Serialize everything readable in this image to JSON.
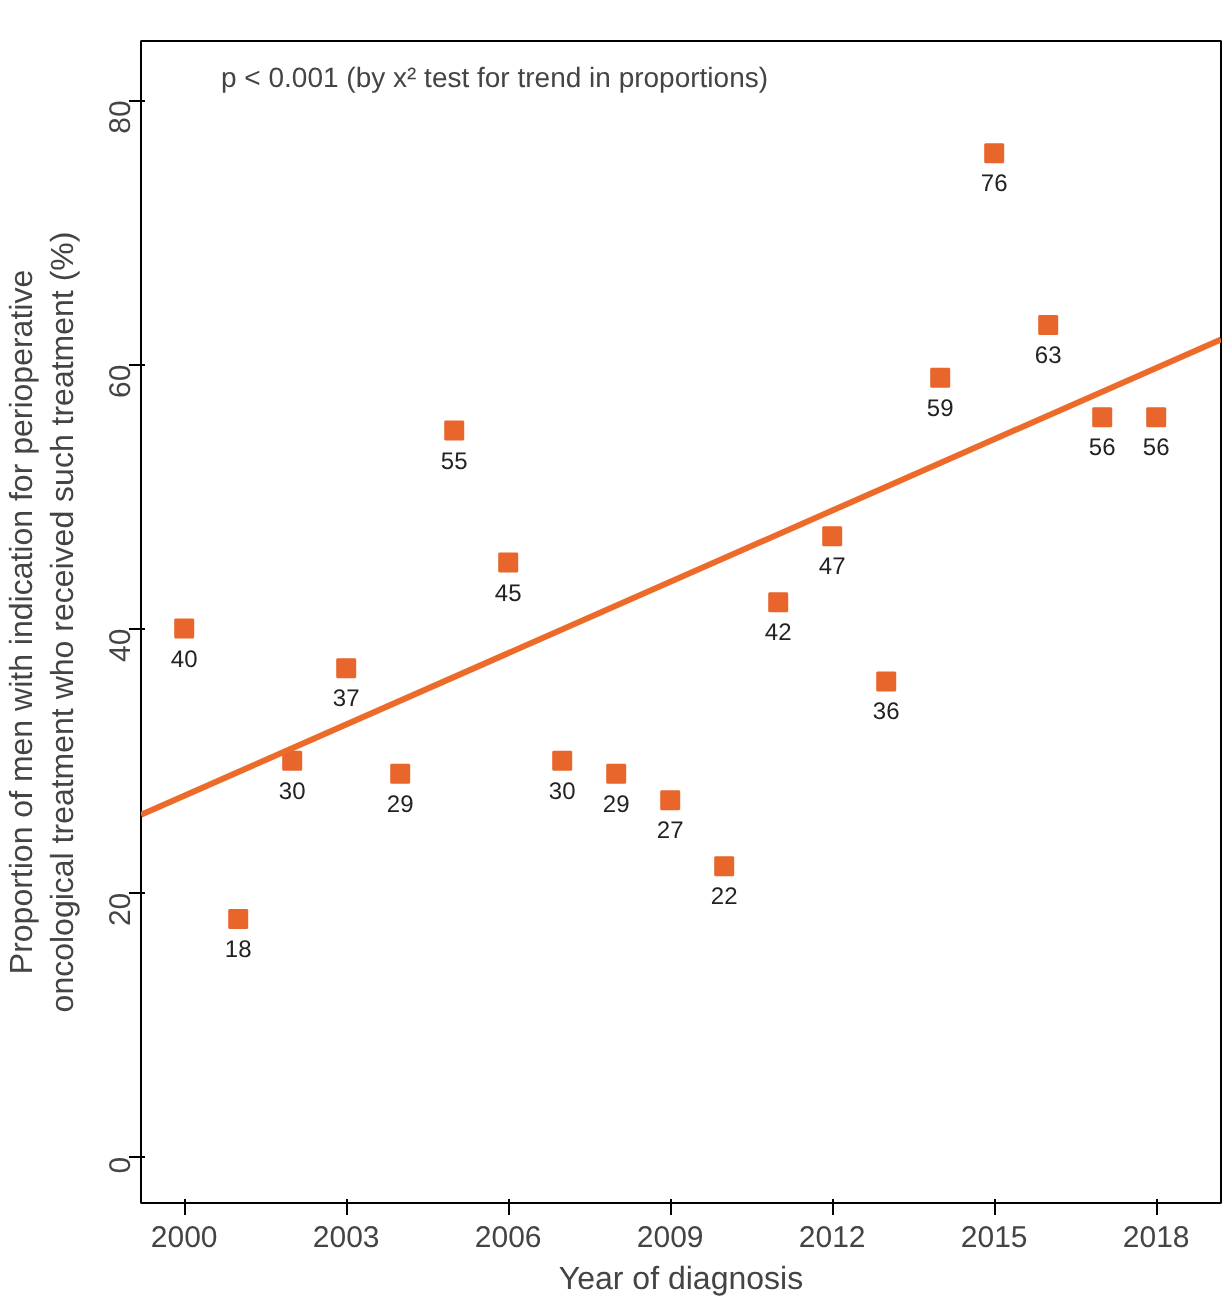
{
  "chart_data": {
    "type": "scatter",
    "xlabel": "Year of diagnosis",
    "ylabel": "Proportion of men with indication for perioperative\noncological treatment who received such treatment (%)",
    "annotations": [
      "p < 0.001 (by x² test for trend in proportions)"
    ],
    "x": [
      2000,
      2001,
      2002,
      2003,
      2004,
      2005,
      2006,
      2007,
      2008,
      2009,
      2010,
      2011,
      2012,
      2013,
      2014,
      2015,
      2016,
      2017,
      2018
    ],
    "series": [
      {
        "color": "#e8662c",
        "marker": "square",
        "values": [
          40,
          18,
          30,
          37,
          29,
          55,
          45,
          30,
          29,
          27,
          22,
          42,
          47,
          36,
          59,
          76,
          63,
          56,
          56
        ],
        "value_labels": [
          "40",
          "18",
          "30",
          "37",
          "29",
          "55",
          "45",
          "30",
          "29",
          "27",
          "22",
          "42",
          "47",
          "36",
          "59",
          "76",
          "63",
          "56",
          "56"
        ]
      },
      {
        "type": "line",
        "color": "#ed6b2a",
        "line_style": "solid",
        "x": [
          1999.2,
          2019.2
        ],
        "values": [
          25.9,
          61.9
        ]
      }
    ],
    "xlim": [
      1999.2,
      2019.2
    ],
    "ylim": [
      -3.5,
      84.5
    ],
    "xticks": [
      2000,
      2003,
      2006,
      2009,
      2012,
      2015,
      2018
    ],
    "yticks": [
      0,
      20,
      40,
      60,
      80
    ],
    "grid": false
  }
}
